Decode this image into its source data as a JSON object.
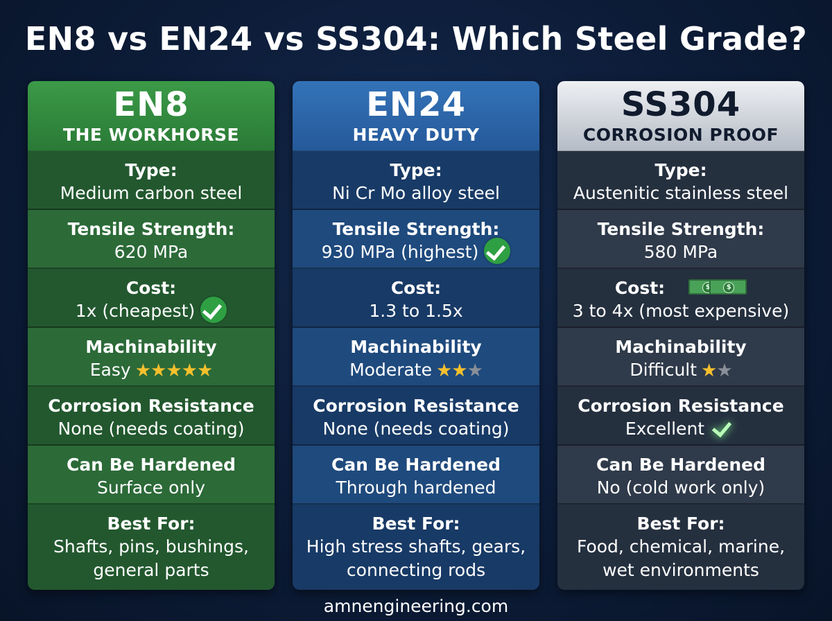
{
  "title": "EN8 vs EN24 vs SS304: Which Steel Grade?",
  "footer": "amnengineering.com",
  "colors": {
    "en8": "#2c6a38",
    "en24": "#1f4a7d",
    "ss304": "#2f3a4a",
    "check": "#2ea043",
    "star": "#f6c02d"
  },
  "columns": [
    {
      "grade": "EN8",
      "subtitle": "THE WORKHORSE",
      "type_label": "Type:",
      "type": "Medium carbon steel",
      "tensile_label": "Tensile Strength:",
      "tensile": "620 MPa",
      "cost_label": "Cost:",
      "cost": "1x (cheapest)",
      "cost_icon": "check-icon",
      "machinability_label": "Machinability",
      "machinability": "Easy",
      "machinability_stars": 5,
      "corrosion_label": "Corrosion Resistance",
      "corrosion": "None (needs coating)",
      "hardened_label": "Can Be Hardened",
      "hardened": "Surface only",
      "best_label": "Best For:",
      "best_line1": "Shafts, pins, bushings,",
      "best_line2": "general parts"
    },
    {
      "grade": "EN24",
      "subtitle": "HEAVY DUTY",
      "type_label": "Type:",
      "type": "Ni Cr Mo alloy steel",
      "tensile_label": "Tensile Strength:",
      "tensile": "930 MPa (highest)",
      "tensile_icon": "check-icon",
      "cost_label": "Cost:",
      "cost": "1.3 to 1.5x",
      "machinability_label": "Machinability",
      "machinability": "Moderate",
      "machinability_stars": 2,
      "corrosion_label": "Corrosion Resistance",
      "corrosion": "None (needs coating)",
      "hardened_label": "Can Be Hardened",
      "hardened": "Through hardened",
      "best_label": "Best For:",
      "best_line1": "High stress shafts, gears,",
      "best_line2": "connecting rods"
    },
    {
      "grade": "SS304",
      "subtitle": "CORROSION PROOF",
      "type_label": "Type:",
      "type": "Austenitic stainless steel",
      "tensile_label": "Tensile Strength:",
      "tensile": "580 MPa",
      "cost_label": "Cost:",
      "cost": "3 to 4x (most expensive)",
      "cost_icon": "money-icon",
      "machinability_label": "Machinability",
      "machinability": "Difficult",
      "machinability_stars": 1,
      "corrosion_label": "Corrosion Resistance",
      "corrosion": "Excellent",
      "corrosion_icon": "check-icon",
      "hardened_label": "Can Be Hardened",
      "hardened": "No (cold work only)",
      "best_label": "Best For:",
      "best_line1": "Food, chemical, marine,",
      "best_line2": "wet environments"
    }
  ]
}
